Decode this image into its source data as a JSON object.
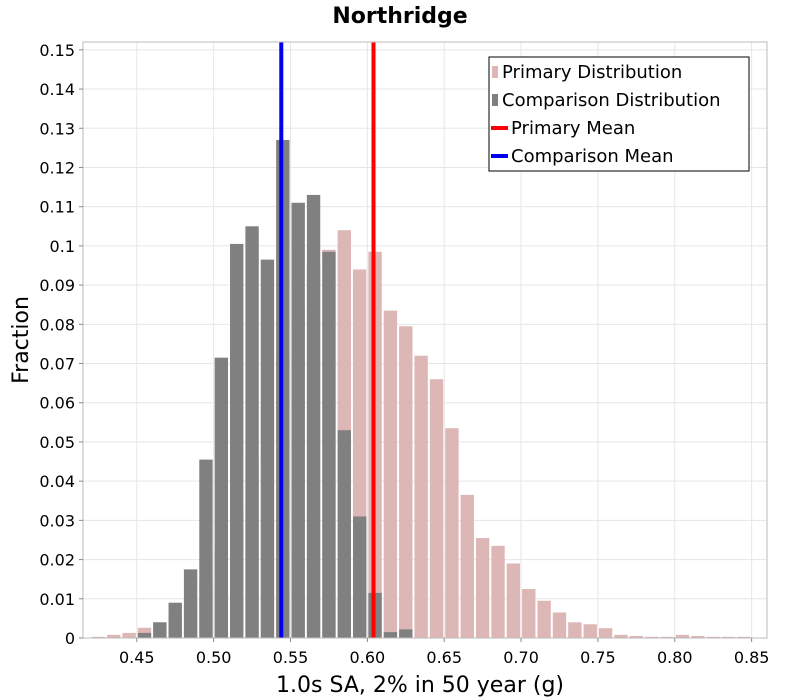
{
  "chart_data": {
    "type": "histogram",
    "title": "Northridge",
    "xlabel": "1.0s SA, 2% in 50 year (g)",
    "ylabel": "Fraction",
    "xlim": [
      0.415,
      0.86
    ],
    "ylim": [
      0,
      0.152
    ],
    "bin_width": 0.01,
    "grid": true,
    "legend_position": "top-right",
    "x_ticks": [
      {
        "value": 0.45,
        "label": "0.45"
      },
      {
        "value": 0.5,
        "label": "0.50"
      },
      {
        "value": 0.55,
        "label": "0.55"
      },
      {
        "value": 0.6,
        "label": "0.60"
      },
      {
        "value": 0.65,
        "label": "0.65"
      },
      {
        "value": 0.7,
        "label": "0.70"
      },
      {
        "value": 0.75,
        "label": "0.75"
      },
      {
        "value": 0.8,
        "label": "0.80"
      },
      {
        "value": 0.85,
        "label": "0.85"
      }
    ],
    "y_ticks": [
      {
        "value": 0,
        "label": "0"
      },
      {
        "value": 0.01,
        "label": "0.01"
      },
      {
        "value": 0.02,
        "label": "0.02"
      },
      {
        "value": 0.03,
        "label": "0.03"
      },
      {
        "value": 0.04,
        "label": "0.04"
      },
      {
        "value": 0.05,
        "label": "0.05"
      },
      {
        "value": 0.06,
        "label": "0.06"
      },
      {
        "value": 0.07,
        "label": "0.07"
      },
      {
        "value": 0.08,
        "label": "0.08"
      },
      {
        "value": 0.09,
        "label": "0.09"
      },
      {
        "value": 0.1,
        "label": "0.1"
      },
      {
        "value": 0.11,
        "label": "0.11"
      },
      {
        "value": 0.12,
        "label": "0.12"
      },
      {
        "value": 0.13,
        "label": "0.13"
      },
      {
        "value": 0.14,
        "label": "0.14"
      },
      {
        "value": 0.15,
        "label": "0.15"
      }
    ],
    "series": [
      {
        "name": "Primary Distribution",
        "kind": "bars",
        "color": "#ddb6b6",
        "x": [
          0.425,
          0.435,
          0.445,
          0.455,
          0.465,
          0.475,
          0.485,
          0.495,
          0.505,
          0.515,
          0.525,
          0.535,
          0.545,
          0.555,
          0.565,
          0.575,
          0.585,
          0.595,
          0.605,
          0.615,
          0.625,
          0.635,
          0.645,
          0.655,
          0.665,
          0.675,
          0.685,
          0.695,
          0.705,
          0.715,
          0.725,
          0.735,
          0.745,
          0.755,
          0.765,
          0.775,
          0.785,
          0.795,
          0.805,
          0.815,
          0.825,
          0.835,
          0.845
        ],
        "y": [
          0.0003,
          0.0008,
          0.0013,
          0.0026,
          0.004,
          0.006,
          0.009,
          0.015,
          0.023,
          0.033,
          0.046,
          0.059,
          0.072,
          0.084,
          0.095,
          0.099,
          0.104,
          0.094,
          0.0985,
          0.0835,
          0.0795,
          0.072,
          0.066,
          0.0535,
          0.0365,
          0.0255,
          0.0235,
          0.019,
          0.0125,
          0.0095,
          0.0065,
          0.004,
          0.0035,
          0.0025,
          0.0008,
          0.0005,
          0.0003,
          0.0003,
          0.0008,
          0.0005,
          0.0003,
          0.0003,
          0.0003
        ]
      },
      {
        "name": "Comparison Distribution",
        "kind": "bars",
        "color": "#808080",
        "x": [
          0.455,
          0.465,
          0.475,
          0.485,
          0.495,
          0.505,
          0.515,
          0.525,
          0.535,
          0.545,
          0.555,
          0.565,
          0.575,
          0.585,
          0.595,
          0.605,
          0.615,
          0.625
        ],
        "y": [
          0.0013,
          0.004,
          0.009,
          0.0175,
          0.0455,
          0.0715,
          0.1005,
          0.105,
          0.0965,
          0.127,
          0.111,
          0.113,
          0.0985,
          0.053,
          0.031,
          0.0115,
          0.0015,
          0.0022
        ]
      },
      {
        "name": "Primary Mean",
        "kind": "vline",
        "color": "#ff0000",
        "x": 0.604
      },
      {
        "name": "Comparison Mean",
        "kind": "vline",
        "color": "#0000ee",
        "x": 0.544
      }
    ]
  }
}
